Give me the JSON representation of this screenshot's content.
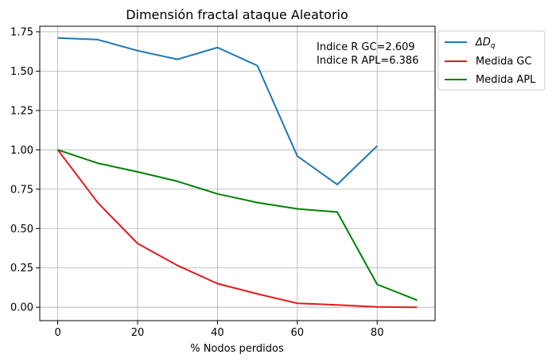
{
  "chart_data": {
    "type": "line",
    "title": "Dimensión fractal ataque Aleatorio",
    "xlabel": "% Nodos perdidos",
    "ylabel": "",
    "xlim": [
      -4.5,
      94.5
    ],
    "ylim": [
      -0.085,
      1.785
    ],
    "xticks": [
      0,
      20,
      40,
      60,
      80
    ],
    "xtick_labels": [
      "0",
      "20",
      "40",
      "60",
      "80"
    ],
    "yticks": [
      0.0,
      0.25,
      0.5,
      0.75,
      1.0,
      1.25,
      1.5,
      1.75
    ],
    "ytick_labels": [
      "0.00",
      "0.25",
      "0.50",
      "0.75",
      "1.00",
      "1.25",
      "1.50",
      "1.75"
    ],
    "grid": true,
    "legend_position": "outside-upper-right",
    "annotations": [
      "Indice R GC=2.609",
      "Indice R APL=6.386"
    ],
    "series": [
      {
        "name": "ΔD",
        "name_subscript": "q",
        "color": "#1f77b4",
        "x": [
          0,
          10,
          20,
          30,
          40,
          50,
          60,
          70,
          80
        ],
        "values": [
          1.71,
          1.7,
          1.63,
          1.575,
          1.65,
          1.535,
          0.96,
          0.78,
          1.025
        ]
      },
      {
        "name": "Medida GC",
        "color": "#e41a1c",
        "x": [
          0,
          10,
          20,
          30,
          40,
          50,
          60,
          70,
          80,
          90
        ],
        "values": [
          1.0,
          0.665,
          0.405,
          0.265,
          0.15,
          0.085,
          0.025,
          0.015,
          0.002,
          0.0
        ]
      },
      {
        "name": "Medida APL",
        "color": "#008000",
        "x": [
          0,
          10,
          20,
          30,
          40,
          50,
          60,
          70,
          80,
          90
        ],
        "values": [
          1.0,
          0.915,
          0.86,
          0.8,
          0.72,
          0.665,
          0.625,
          0.605,
          0.145,
          0.045
        ]
      }
    ]
  }
}
